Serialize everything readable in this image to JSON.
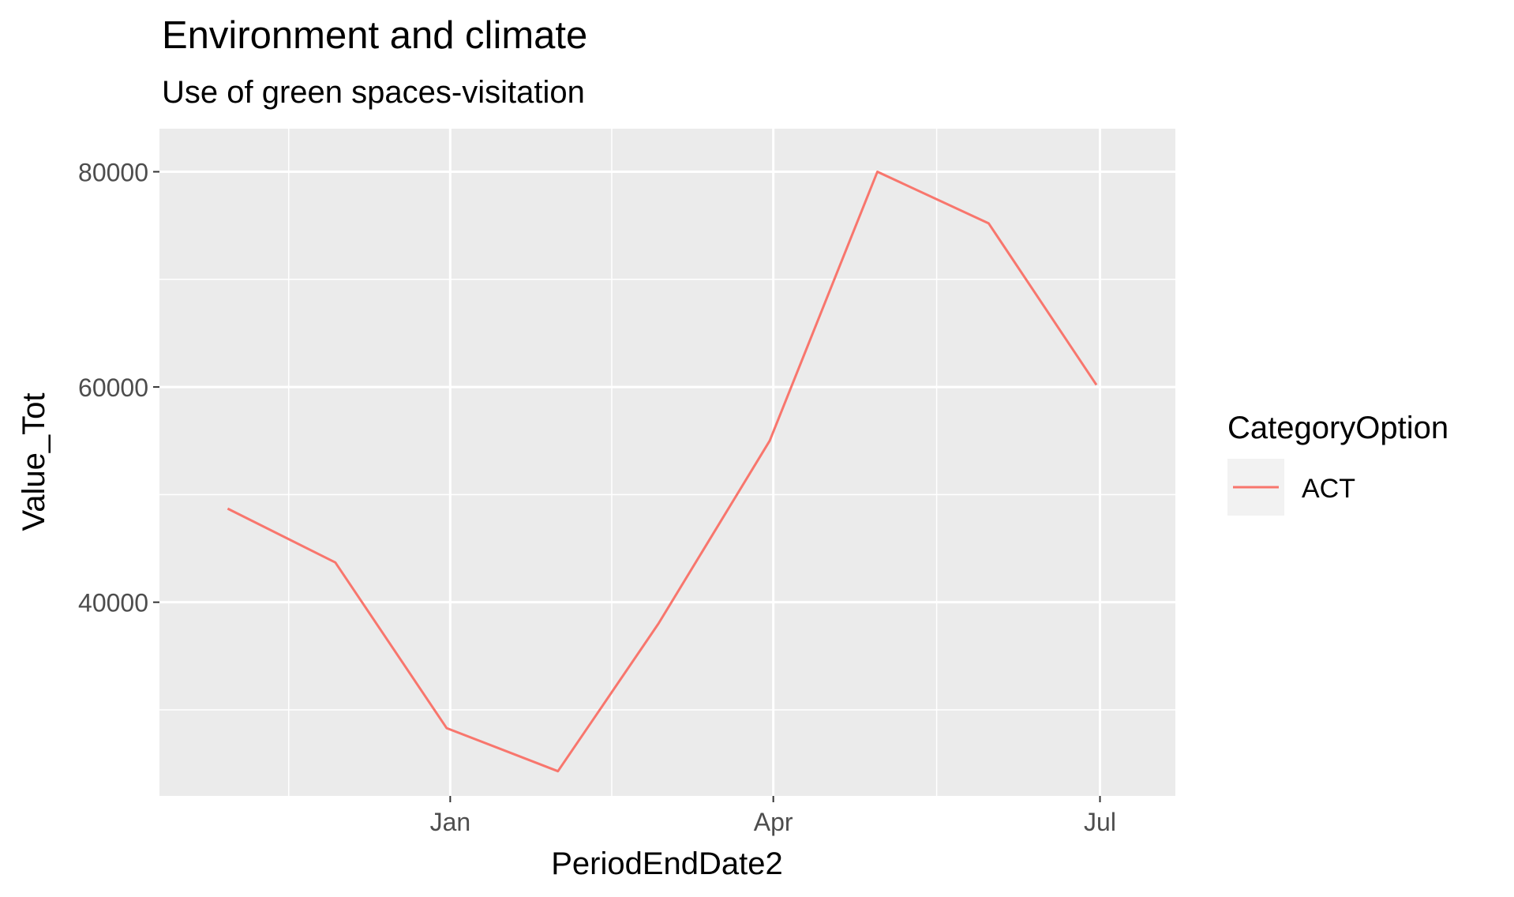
{
  "chart_data": {
    "type": "line",
    "title": "Environment and climate",
    "subtitle": "Use of green spaces-visitation",
    "xlabel": "PeriodEndDate2",
    "ylabel": "Value_Tot",
    "x_ticks": [
      "Jan",
      "Apr",
      "Jul"
    ],
    "y_ticks": [
      "40000",
      "60000",
      "80000"
    ],
    "legend": {
      "title": "CategoryOption",
      "position": "right",
      "entries": [
        "ACT"
      ]
    },
    "grid": true,
    "ylim": [
      22000,
      84000
    ],
    "xlim": [
      "2020-10-12",
      "2021-07-22"
    ],
    "series": [
      {
        "name": "ACT",
        "color": "#F8766D",
        "x": [
          "2020-10-31",
          "2020-11-30",
          "2020-12-31",
          "2021-01-31",
          "2021-02-28",
          "2021-03-31",
          "2021-04-30",
          "2021-05-31",
          "2021-06-30"
        ],
        "values": [
          48700,
          43700,
          28300,
          24300,
          38000,
          55000,
          80000,
          75200,
          60200
        ]
      }
    ],
    "colors": {
      "panel_background": "#EBEBEB",
      "grid_line": "#FFFFFF",
      "text": "#000000",
      "axis_text": "#4D4D4D",
      "legend_key_background": "#F2F2F2"
    }
  }
}
